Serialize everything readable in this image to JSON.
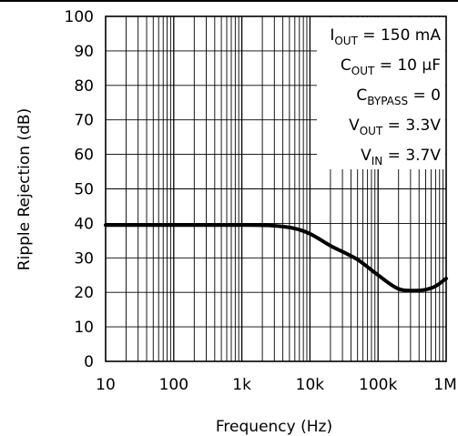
{
  "chart_data": {
    "type": "line",
    "x_scale": "log",
    "xlabel": "Frequency (Hz)",
    "ylabel": "Ripple Rejection (dB)",
    "xlim": [
      10,
      1000000
    ],
    "ylim": [
      0,
      100
    ],
    "x_ticks": [
      10,
      100,
      1000,
      10000,
      100000,
      1000000
    ],
    "x_tick_labels": [
      "10",
      "100",
      "1k",
      "10k",
      "100k",
      "1M"
    ],
    "y_ticks": [
      0,
      10,
      20,
      30,
      40,
      50,
      60,
      70,
      80,
      90,
      100
    ],
    "y_tick_labels": [
      "0",
      "10",
      "20",
      "30",
      "40",
      "50",
      "60",
      "70",
      "80",
      "90",
      "100"
    ],
    "grid": true,
    "series": [
      {
        "x": [
          10,
          30,
          100,
          300,
          1000,
          3000,
          6000,
          10000,
          20000,
          50000,
          100000,
          200000,
          300000,
          500000,
          700000,
          1000000
        ],
        "y": [
          39.5,
          39.5,
          39.5,
          39.5,
          39.5,
          39.3,
          38.5,
          37,
          33.5,
          29.5,
          25,
          21,
          20.5,
          20.8,
          21.8,
          24
        ]
      }
    ],
    "annotation": {
      "lines": [
        {
          "main": "I",
          "sub": "OUT",
          "rest": " = 150 mA"
        },
        {
          "main": "C",
          "sub": "OUT",
          "rest": " = 10 μF"
        },
        {
          "main": "C",
          "sub": "BYPASS",
          "rest": " = 0"
        },
        {
          "main": "V",
          "sub": "OUT",
          "rest": " = 3.3V"
        },
        {
          "main": "V",
          "sub": "IN",
          "rest": " = 3.7V"
        }
      ]
    }
  }
}
